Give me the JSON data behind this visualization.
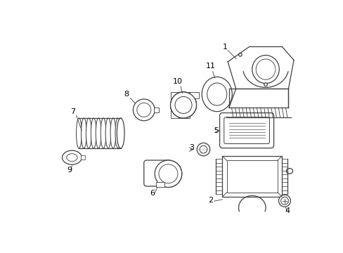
{
  "background_color": "#ffffff",
  "line_color": "#404040",
  "text_color": "#000000",
  "lw": 0.9
}
